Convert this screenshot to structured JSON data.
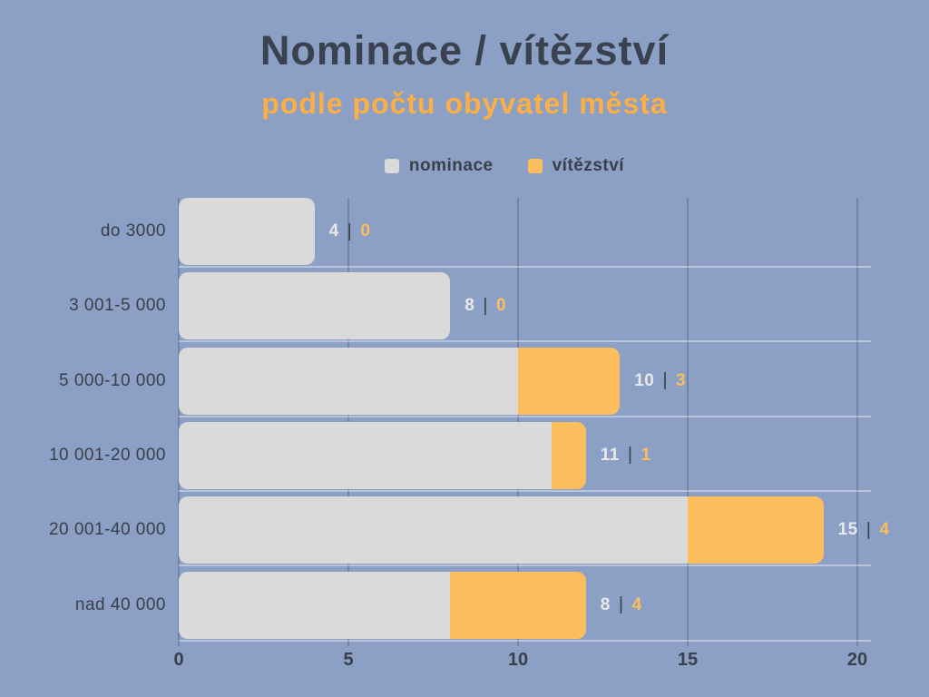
{
  "chart": {
    "title": "Nominace / vítězství",
    "subtitle": "podle počtu obyvatel města"
  },
  "chart_data": {
    "type": "bar",
    "orientation": "horizontal",
    "stacked": true,
    "title": "Nominace / vítězství",
    "subtitle": "podle počtu obyvatel města",
    "categories": [
      "do 3000",
      "3 001-5 000",
      "5 000-10 000",
      "10 001-20 000",
      "20 001-40 000",
      "nad 40 000"
    ],
    "series": [
      {
        "name": "nominace",
        "values": [
          4,
          8,
          10,
          11,
          15,
          8
        ]
      },
      {
        "name": "vítězství",
        "values": [
          0,
          0,
          3,
          1,
          4,
          4
        ]
      }
    ],
    "value_labels": [
      "4 | 0",
      "8 | 0",
      "10 | 3",
      "11 | 1",
      "15 | 4",
      "8 | 4"
    ],
    "value_separator": "|",
    "xlabel": "",
    "ylabel": "",
    "xlim": [
      0,
      20
    ],
    "xticks": [
      0,
      5,
      10,
      15,
      20
    ],
    "grid": "vertical-only",
    "legend_position": "top-center"
  },
  "colors": {
    "background": "#8ba0c4",
    "bar_nominace": "#dadada",
    "bar_vitezstvi": "#fcbd5c",
    "title_text": "#3a414f",
    "subtitle_text": "#fbaf44",
    "label_text": "#3a404a",
    "gridline": "rgba(47,61,88,0.28)",
    "value_nominace_text": "#e9e9ec"
  }
}
